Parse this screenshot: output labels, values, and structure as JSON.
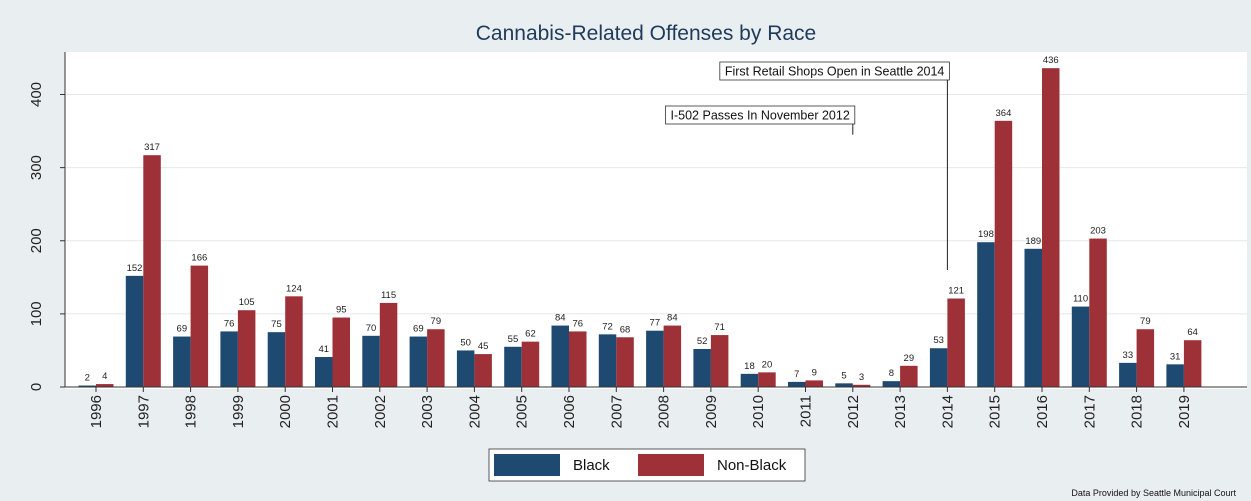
{
  "chart_data": {
    "type": "bar",
    "title": "Cannabis-Related Offenses by Race",
    "categories": [
      "1996",
      "1997",
      "1998",
      "1999",
      "2000",
      "2001",
      "2002",
      "2003",
      "2004",
      "2005",
      "2006",
      "2007",
      "2008",
      "2009",
      "2010",
      "2011",
      "2012",
      "2013",
      "2014",
      "2015",
      "2016",
      "2017",
      "2018",
      "2019"
    ],
    "series": [
      {
        "name": "Black",
        "color": "#1e4a72",
        "values": [
          2,
          152,
          69,
          76,
          75,
          41,
          70,
          69,
          50,
          55,
          84,
          72,
          77,
          52,
          18,
          7,
          5,
          8,
          53,
          198,
          189,
          110,
          33,
          31
        ]
      },
      {
        "name": "Non-Black",
        "color": "#9e3037",
        "values": [
          4,
          317,
          166,
          105,
          124,
          95,
          115,
          79,
          45,
          62,
          76,
          68,
          84,
          71,
          20,
          9,
          3,
          29,
          121,
          364,
          436,
          203,
          79,
          64
        ]
      }
    ],
    "ylim": [
      0,
      460
    ],
    "yticks": [
      0,
      100,
      200,
      300,
      400
    ],
    "xlabel": "",
    "ylabel": "",
    "grid": true,
    "legend": "bottom-center",
    "annotations": [
      {
        "text": "I-502 Passes In November 2012",
        "x": "2012",
        "y": 345
      },
      {
        "text": "First Retail Shops Open in Seattle 2014",
        "x": "2014",
        "y": 160
      }
    ],
    "note": "Data Provided by Seattle Municipal Court"
  }
}
